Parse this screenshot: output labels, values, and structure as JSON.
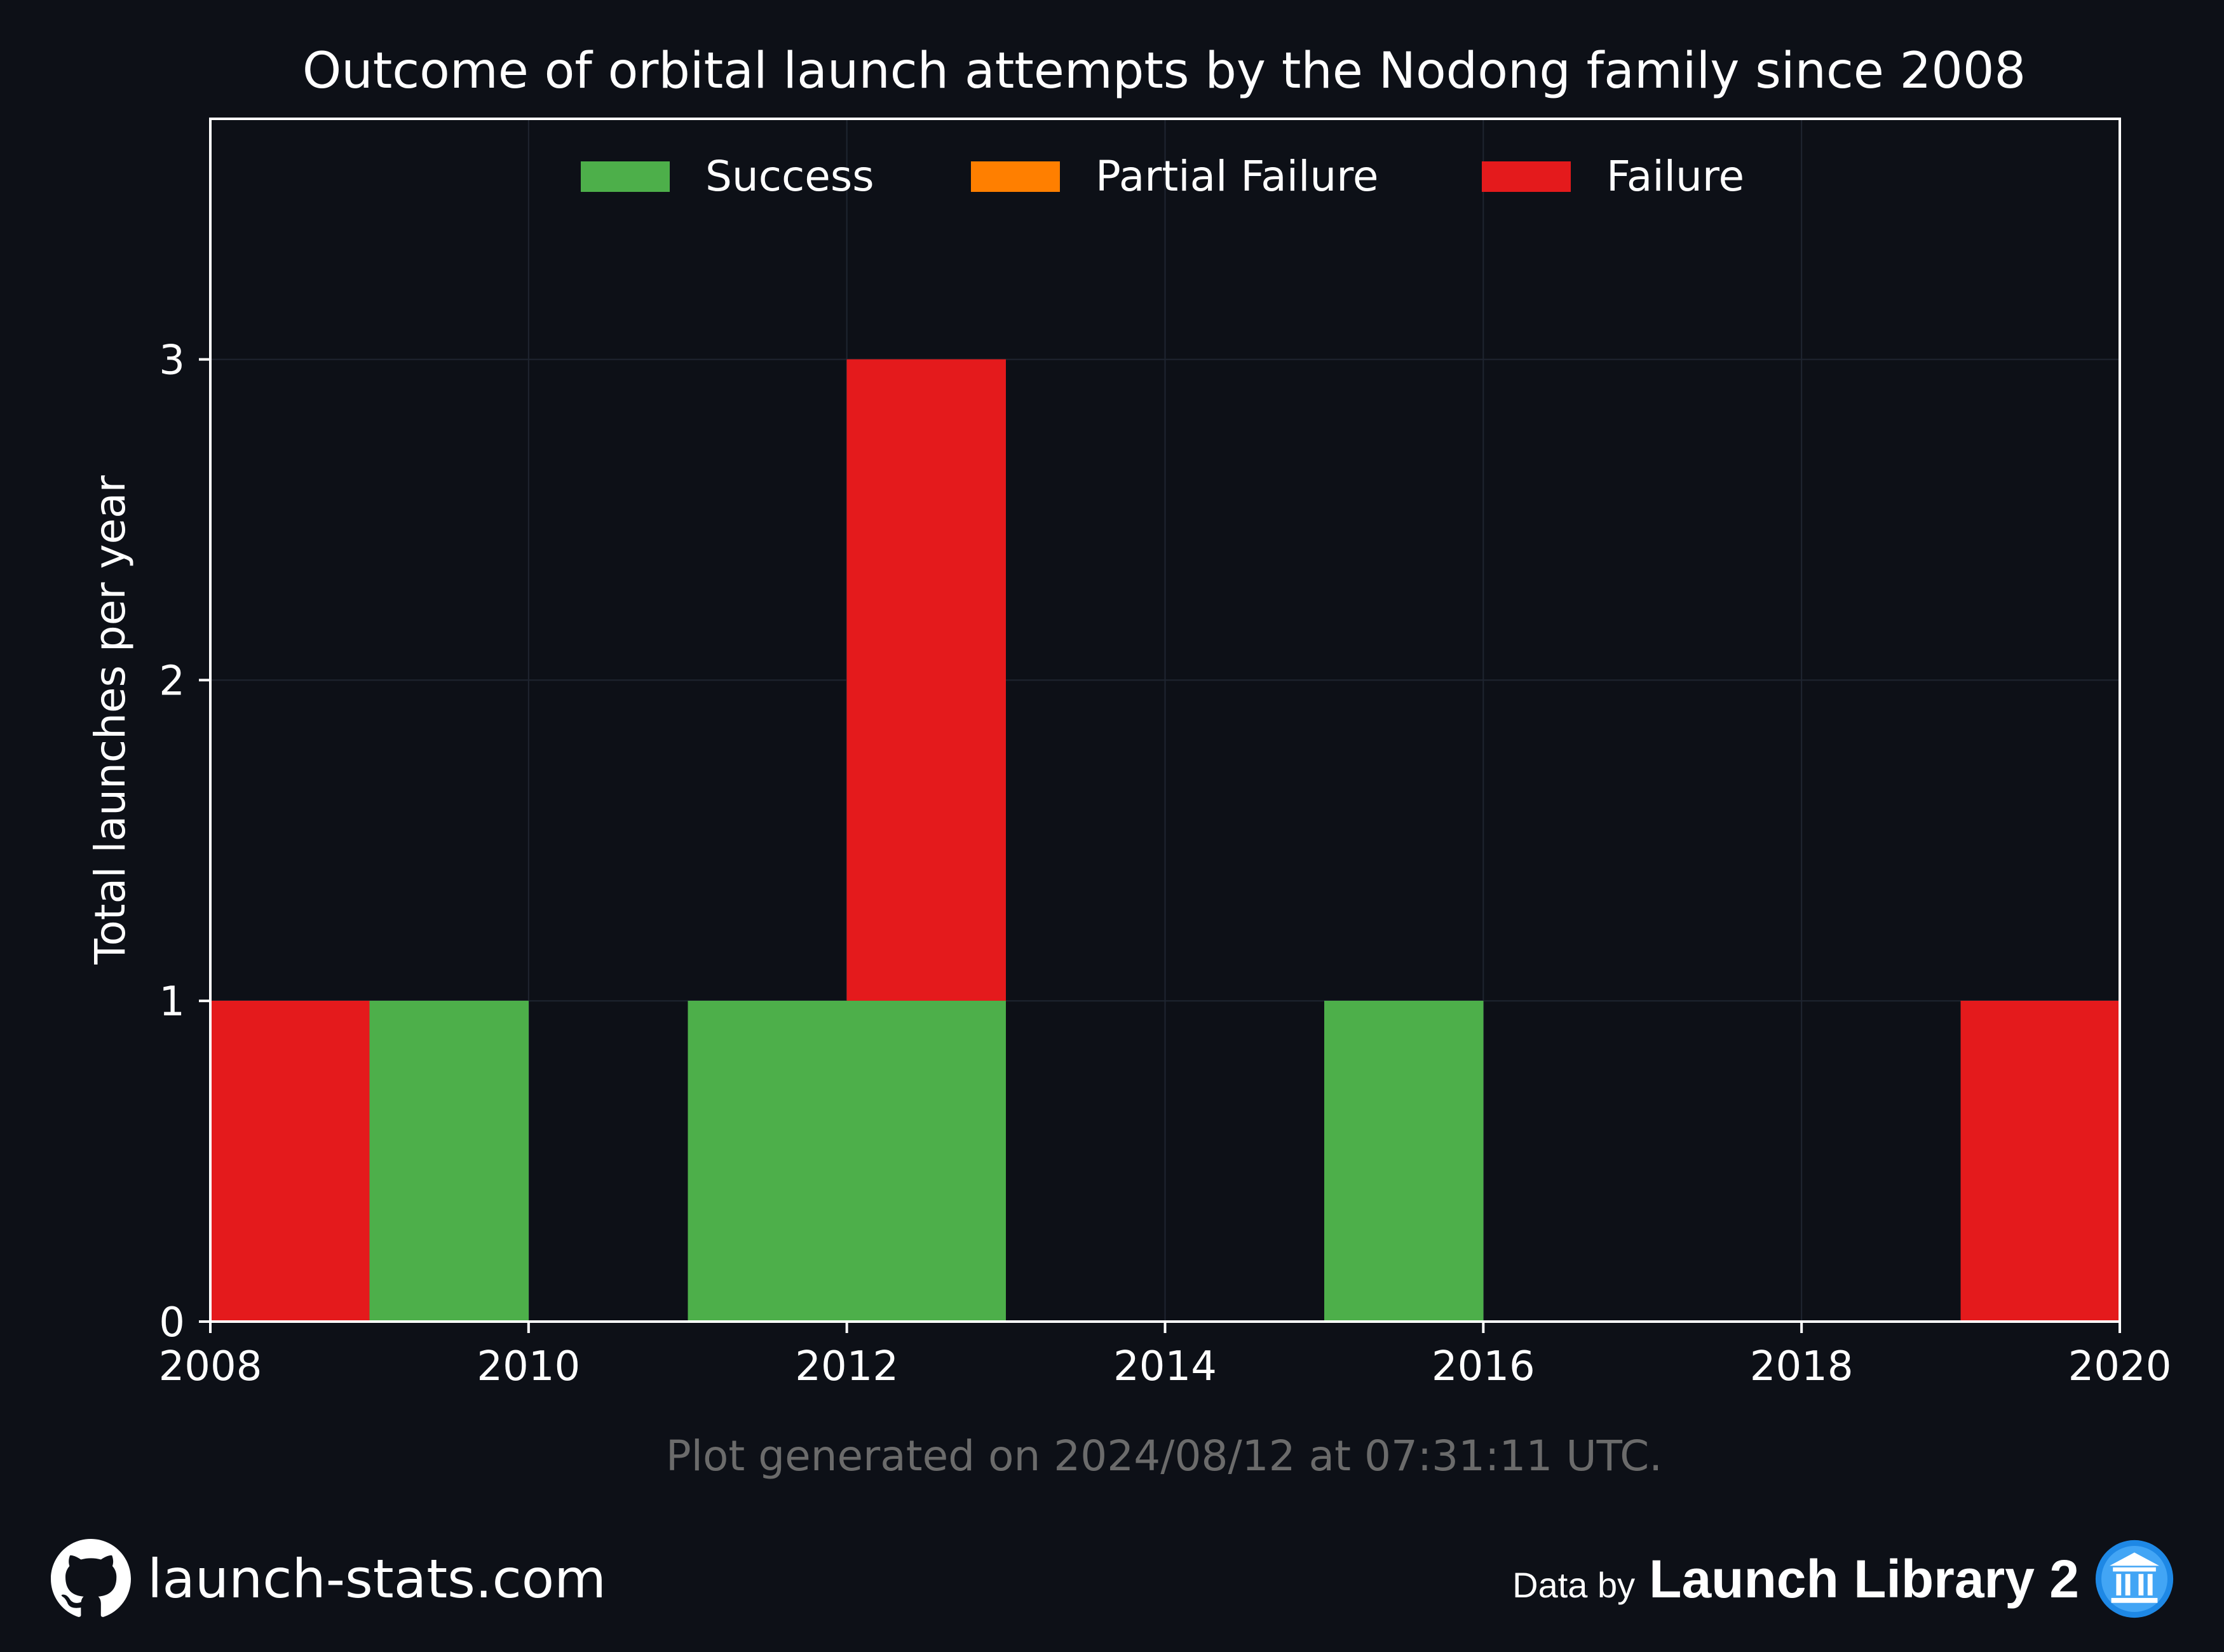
{
  "chart_data": {
    "type": "bar",
    "stacked": true,
    "title": "Outcome of orbital launch attempts by the Nodong family since 2008",
    "ylabel": "Total launches per year",
    "xlabel": "",
    "xlim": [
      2008,
      2020
    ],
    "ylim": [
      0,
      3.75
    ],
    "xticks": [
      2008,
      2010,
      2012,
      2014,
      2016,
      2018,
      2020
    ],
    "yticks": [
      0,
      1,
      2,
      3
    ],
    "grid": true,
    "legend_position": "top-center",
    "bin_width_years": 1,
    "x": [
      2008,
      2009,
      2010,
      2011,
      2012,
      2013,
      2014,
      2015,
      2016,
      2017,
      2018,
      2019
    ],
    "series": [
      {
        "name": "Success",
        "color": "#4daf4a",
        "values": [
          0,
          1,
          0,
          1,
          1,
          0,
          0,
          1,
          0,
          0,
          0,
          0
        ]
      },
      {
        "name": "Partial Failure",
        "color": "#ff7f00",
        "values": [
          0,
          0,
          0,
          0,
          0,
          0,
          0,
          0,
          0,
          0,
          0,
          0
        ]
      },
      {
        "name": "Failure",
        "color": "#e41a1c",
        "values": [
          1,
          0,
          0,
          0,
          2,
          0,
          0,
          0,
          0,
          0,
          0,
          1
        ]
      }
    ],
    "footnote": "Plot generated on 2024/08/12 at 07:31:11 UTC."
  },
  "footer": {
    "site": "launch-stats.com",
    "data_by": "Data by",
    "source": "Launch Library 2"
  },
  "colors": {
    "background": "#0d1017",
    "frame": "#ffffff",
    "grid": "#1f2530",
    "footnote": "#6b6b6b"
  },
  "icons": {
    "github": "github-icon",
    "launch_library": "launch-library-logo-icon"
  }
}
